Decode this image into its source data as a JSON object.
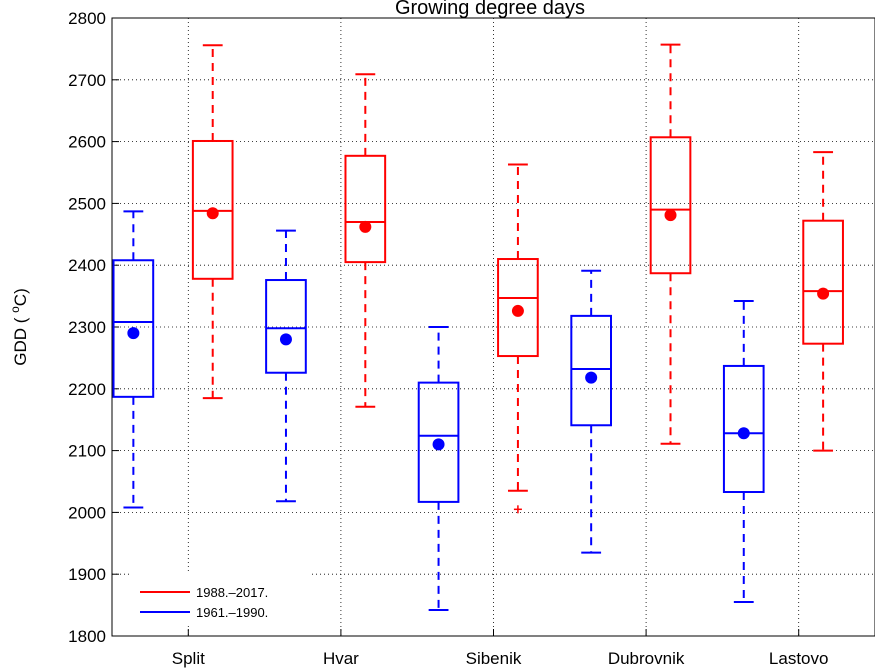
{
  "chart_data": {
    "type": "box",
    "title": "Growing degree days",
    "xlabel": "",
    "ylabel": "GDD (°C)",
    "ylim": [
      1800,
      2800
    ],
    "yticks": [
      1800,
      1900,
      2000,
      2100,
      2200,
      2300,
      2400,
      2500,
      2600,
      2700,
      2800
    ],
    "grid": true,
    "legend_position": "bottom-left",
    "categories": [
      "Split",
      "Hvar",
      "Sibenik",
      "Dubrovnik",
      "Lastovo"
    ],
    "series": [
      {
        "name": "1961.–1990.",
        "color": "#0000ff",
        "boxes": [
          {
            "whisker_low": 2008,
            "q1": 2187,
            "median": 2308,
            "q3": 2408,
            "whisker_high": 2487,
            "mean": 2290
          },
          {
            "whisker_low": 2018,
            "q1": 2226,
            "median": 2298,
            "q3": 2376,
            "whisker_high": 2456,
            "mean": 2280
          },
          {
            "whisker_low": 1842,
            "q1": 2017,
            "median": 2124,
            "q3": 2210,
            "whisker_high": 2300,
            "mean": 2110
          },
          {
            "whisker_low": 1935,
            "q1": 2141,
            "median": 2232,
            "q3": 2318,
            "whisker_high": 2391,
            "mean": 2218
          },
          {
            "whisker_low": 1855,
            "q1": 2033,
            "median": 2128,
            "q3": 2237,
            "whisker_high": 2342,
            "mean": 2128
          }
        ]
      },
      {
        "name": "1988.–2017.",
        "color": "#ff0000",
        "boxes": [
          {
            "whisker_low": 2185,
            "q1": 2378,
            "median": 2488,
            "q3": 2601,
            "whisker_high": 2756,
            "mean": 2484
          },
          {
            "whisker_low": 2171,
            "q1": 2405,
            "median": 2470,
            "q3": 2577,
            "whisker_high": 2709,
            "mean": 2462
          },
          {
            "whisker_low": 2035,
            "q1": 2253,
            "median": 2347,
            "q3": 2410,
            "whisker_high": 2563,
            "mean": 2326,
            "outliers": [
              2005
            ]
          },
          {
            "whisker_low": 2111,
            "q1": 2387,
            "median": 2490,
            "q3": 2607,
            "whisker_high": 2757,
            "mean": 2481
          },
          {
            "whisker_low": 2100,
            "q1": 2273,
            "median": 2358,
            "q3": 2472,
            "whisker_high": 2583,
            "mean": 2354
          }
        ]
      }
    ],
    "legend": [
      {
        "label": "1988.–2017.",
        "color": "#ff0000"
      },
      {
        "label": "1961.–1990.",
        "color": "#0000ff"
      }
    ]
  }
}
